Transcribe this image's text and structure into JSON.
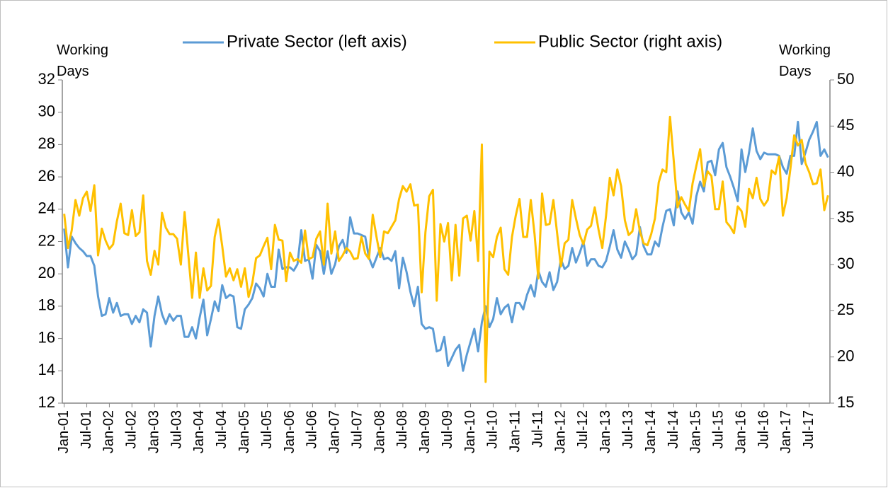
{
  "chart_data": {
    "type": "line",
    "legend": {
      "position": "top"
    },
    "y_label": "Working Days",
    "y2_label": "Working Days",
    "categories": [
      "Jan-01",
      null,
      null,
      null,
      null,
      null,
      "Jul-01",
      null,
      null,
      null,
      null,
      null,
      "Jan-02",
      null,
      null,
      null,
      null,
      null,
      "Jul-02",
      null,
      null,
      null,
      null,
      null,
      "Jan-03",
      null,
      null,
      null,
      null,
      null,
      "Jul-03",
      null,
      null,
      null,
      null,
      null,
      "Jan-04",
      null,
      null,
      null,
      null,
      null,
      "Jul-04",
      null,
      null,
      null,
      null,
      null,
      "Jan-05",
      null,
      null,
      null,
      null,
      null,
      "Jul-05",
      null,
      null,
      null,
      null,
      null,
      "Jan-06",
      null,
      null,
      null,
      null,
      null,
      "Jul-06",
      null,
      null,
      null,
      null,
      null,
      "Jan-07",
      null,
      null,
      null,
      null,
      null,
      "Jul-07",
      null,
      null,
      null,
      null,
      null,
      "Jan-08",
      null,
      null,
      null,
      null,
      null,
      "Jul-08",
      null,
      null,
      null,
      null,
      null,
      "Jan-09",
      null,
      null,
      null,
      null,
      null,
      "Jul-09",
      null,
      null,
      null,
      null,
      null,
      "Jan-10",
      null,
      null,
      null,
      null,
      null,
      "Jul-10",
      null,
      null,
      null,
      null,
      null,
      "Jan-11",
      null,
      null,
      null,
      null,
      null,
      "Jul-11",
      null,
      null,
      null,
      null,
      null,
      "Jan-12",
      null,
      null,
      null,
      null,
      null,
      "Jul-12",
      null,
      null,
      null,
      null,
      null,
      "Jan-13",
      null,
      null,
      null,
      null,
      null,
      "Jul-13",
      null,
      null,
      null,
      null,
      null,
      "Jan-14",
      null,
      null,
      null,
      null,
      null,
      "Jul-14",
      null,
      null,
      null,
      null,
      null,
      "Jan-15",
      null,
      null,
      null,
      null,
      null,
      "Jul-15",
      null,
      null,
      null,
      null,
      null,
      "Jan-16",
      null,
      null,
      null,
      null,
      null,
      "Jul-16",
      null,
      null,
      null,
      null,
      null,
      "Jan-17",
      null,
      null,
      null,
      null,
      null,
      "Jul-17",
      null,
      null,
      null,
      null,
      null
    ],
    "series": [
      {
        "name": "Private Sector (left axis)",
        "color": "#5b9bd5",
        "values": [
          22.8,
          20.4,
          22.3,
          21.9,
          21.6,
          21.4,
          21.1,
          21.1,
          20.5,
          18.6,
          17.4,
          17.5,
          18.5,
          17.6,
          18.2,
          17.4,
          17.5,
          17.5,
          16.9,
          17.4,
          17.0,
          17.8,
          17.6,
          15.5,
          17.4,
          18.6,
          17.5,
          16.9,
          17.5,
          17.1,
          17.4,
          17.4,
          16.1,
          16.1,
          16.7,
          16.0,
          17.3,
          18.4,
          16.2,
          17.2,
          18.3,
          17.7,
          19.3,
          18.5,
          18.7,
          18.6,
          16.7,
          16.6,
          17.8,
          18.1,
          18.5,
          19.4,
          19.1,
          18.6,
          20.0,
          19.2,
          19.2,
          21.5,
          20.3,
          20.4,
          20.4,
          20.2,
          20.6,
          22.7,
          20.8,
          20.9,
          19.7,
          21.8,
          21.4,
          20.0,
          21.4,
          20.0,
          20.6,
          21.7,
          22.1,
          21.3,
          23.5,
          22.5,
          22.5,
          22.4,
          22.3,
          21.0,
          20.4,
          21.0,
          21.6,
          20.9,
          21.0,
          20.8,
          21.4,
          19.1,
          21.0,
          20.1,
          18.9,
          18.0,
          19.2,
          16.9,
          16.6,
          16.7,
          16.6,
          15.2,
          15.3,
          16.1,
          14.3,
          14.8,
          15.3,
          15.6,
          14.0,
          15.0,
          15.8,
          16.6,
          15.2,
          17.0,
          18.0,
          16.7,
          17.2,
          18.5,
          17.5,
          17.9,
          18.1,
          17.0,
          18.2,
          18.2,
          17.8,
          18.7,
          19.3,
          18.6,
          20.2,
          19.5,
          19.2,
          20.1,
          19.0,
          19.5,
          20.9,
          20.3,
          20.5,
          21.6,
          20.7,
          21.3,
          22.0,
          20.5,
          20.9,
          20.9,
          20.5,
          20.4,
          20.8,
          21.7,
          22.7,
          21.5,
          21.0,
          22.0,
          21.5,
          20.9,
          21.2,
          22.9,
          21.7,
          21.2,
          21.2,
          22.0,
          21.7,
          22.9,
          23.9,
          24.0,
          23.0,
          25.1,
          23.8,
          23.4,
          23.8,
          23.1,
          24.8,
          25.7,
          25.1,
          26.9,
          27.0,
          26.1,
          27.7,
          28.1,
          26.6,
          26.0,
          25.3,
          24.5,
          27.7,
          26.3,
          27.5,
          29.0,
          27.6,
          27.1,
          27.5,
          27.4,
          27.4,
          27.4,
          27.3,
          26.6,
          26.2,
          27.3,
          27.3,
          29.4,
          26.8,
          27.5,
          28.3,
          28.8,
          29.4,
          27.3,
          27.7,
          27.2
        ]
      },
      {
        "name": "Public Sector (right axis)",
        "color": "#ffc000",
        "axis": "y2",
        "values": [
          35.5,
          31.8,
          33.7,
          37.0,
          35.3,
          37.2,
          37.9,
          35.8,
          38.6,
          31.0,
          33.9,
          32.6,
          31.7,
          32.2,
          34.7,
          36.6,
          33.4,
          33.2,
          35.9,
          33.1,
          33.5,
          37.5,
          30.4,
          28.9,
          31.5,
          30.0,
          35.6,
          34.0,
          33.3,
          33.3,
          32.8,
          30.0,
          35.7,
          31.0,
          26.4,
          31.3,
          26.4,
          29.6,
          27.2,
          27.7,
          33.0,
          34.9,
          32.0,
          28.7,
          29.6,
          28.3,
          29.5,
          27.6,
          29.6,
          26.5,
          28.0,
          30.7,
          31.0,
          32.0,
          32.9,
          29.5,
          34.3,
          32.7,
          32.6,
          28.2,
          31.3,
          30.4,
          30.6,
          30.2,
          33.7,
          30.6,
          30.8,
          32.8,
          33.6,
          30.0,
          36.6,
          31.2,
          33.6,
          30.4,
          31.0,
          31.8,
          31.4,
          30.6,
          30.7,
          33.0,
          31.2,
          30.6,
          35.4,
          33.0,
          30.8,
          33.6,
          33.4,
          34.1,
          34.8,
          37.1,
          38.5,
          37.9,
          38.7,
          36.4,
          36.5,
          27.0,
          33.5,
          37.4,
          38.1,
          26.1,
          34.4,
          32.5,
          34.5,
          28.3,
          34.3,
          28.8,
          35.0,
          35.3,
          32.6,
          35.8,
          30.4,
          43.0,
          17.3,
          31.4,
          30.8,
          33.0,
          34.0,
          29.5,
          28.9,
          33.0,
          35.3,
          37.1,
          33.0,
          33.0,
          37.0,
          33.3,
          28.5,
          37.7,
          34.3,
          34.4,
          37.0,
          33.4,
          29.8,
          32.3,
          32.7,
          37.0,
          35.0,
          33.2,
          32.2,
          33.8,
          34.2,
          36.2,
          33.8,
          31.8,
          35.3,
          39.4,
          37.5,
          40.3,
          38.5,
          34.8,
          33.2,
          33.6,
          36.0,
          33.6,
          32.3,
          32.1,
          33.3,
          35.0,
          38.9,
          40.3,
          40.0,
          46.0,
          41.2,
          36.2,
          37.3,
          36.5,
          35.8,
          38.8,
          40.7,
          42.5,
          38.5,
          40.1,
          39.6,
          36.0,
          36.0,
          39.0,
          34.6,
          34.1,
          33.4,
          36.3,
          35.8,
          34.1,
          38.2,
          37.2,
          39.4,
          37.1,
          36.4,
          37.0,
          40.2,
          39.8,
          41.7,
          35.3,
          37.2,
          40.4,
          44.0,
          42.9,
          43.5,
          41.0,
          40.0,
          38.7,
          38.8,
          40.3,
          35.9,
          37.5
        ]
      }
    ],
    "ylim": [
      12,
      32
    ],
    "yticks": [
      12,
      14,
      16,
      18,
      20,
      22,
      24,
      26,
      28,
      30,
      32
    ],
    "y2lim": [
      15,
      50
    ],
    "y2ticks": [
      15,
      20,
      25,
      30,
      35,
      40,
      45,
      50
    ],
    "grid": false
  }
}
